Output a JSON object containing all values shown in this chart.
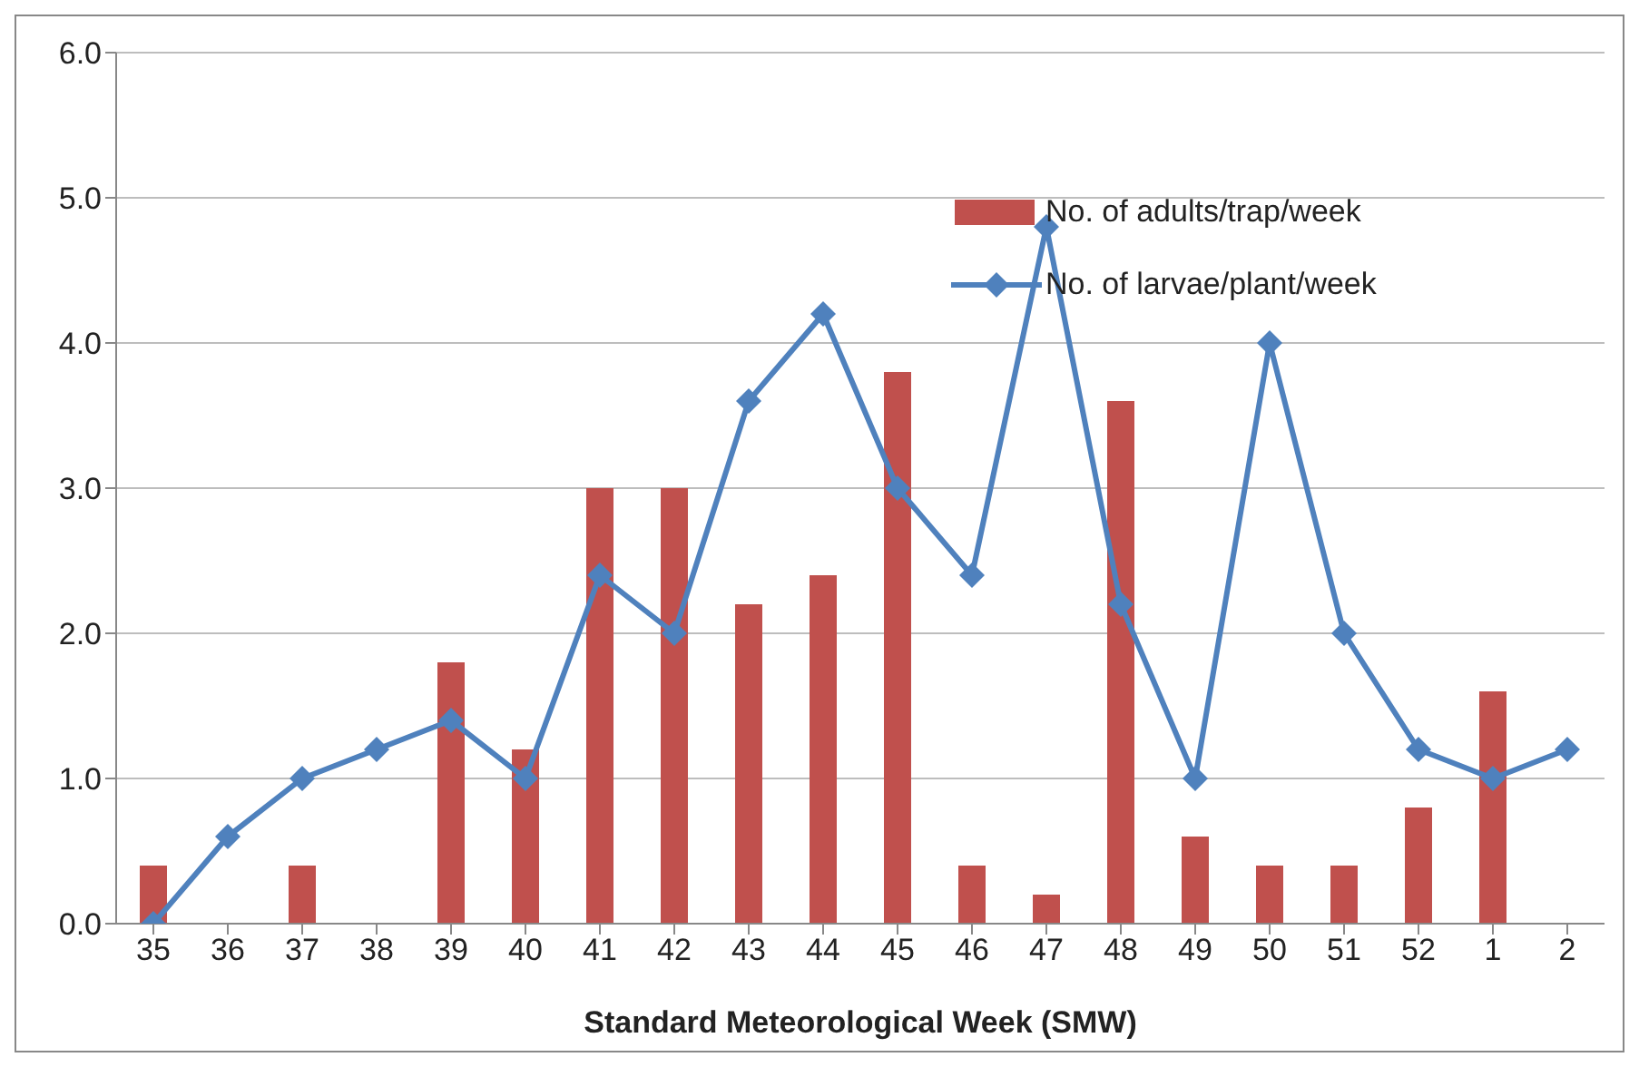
{
  "chart_data": {
    "type": "bar",
    "xlabel": "Standard Meteorological Week (SMW)",
    "categories": [
      "35",
      "36",
      "37",
      "38",
      "39",
      "40",
      "41",
      "42",
      "43",
      "44",
      "45",
      "46",
      "47",
      "48",
      "49",
      "50",
      "51",
      "52",
      "1",
      "2"
    ],
    "series": [
      {
        "name": "No. of adults/trap/week",
        "color": "#c0504d",
        "values": [
          0.4,
          0,
          0.4,
          0,
          1.8,
          1.2,
          3.0,
          3.0,
          2.2,
          2.4,
          3.8,
          0.4,
          0.2,
          3.6,
          0.6,
          0.4,
          0.4,
          0.8,
          1.6,
          0
        ]
      },
      {
        "name": "No. of larvae/plant/week",
        "type": "line",
        "color": "#4f81bd",
        "marker": "diamond",
        "values": [
          0,
          0.6,
          1.0,
          1.2,
          1.4,
          1.0,
          2.4,
          2.0,
          3.6,
          4.2,
          3.0,
          2.4,
          4.8,
          2.2,
          1.0,
          4.0,
          2.0,
          1.2,
          1.0,
          1.2
        ]
      }
    ],
    "ylim": [
      0,
      6
    ],
    "yticks": [
      {
        "value": 0,
        "label": "0.0"
      },
      {
        "value": 1,
        "label": "1.0"
      },
      {
        "value": 2,
        "label": "2.0"
      },
      {
        "value": 3,
        "label": "3.0"
      },
      {
        "value": 4,
        "label": "4.0"
      },
      {
        "value": 5,
        "label": "5.0"
      },
      {
        "value": 6,
        "label": "6.0"
      }
    ],
    "grid": "y",
    "legend": "top right"
  }
}
